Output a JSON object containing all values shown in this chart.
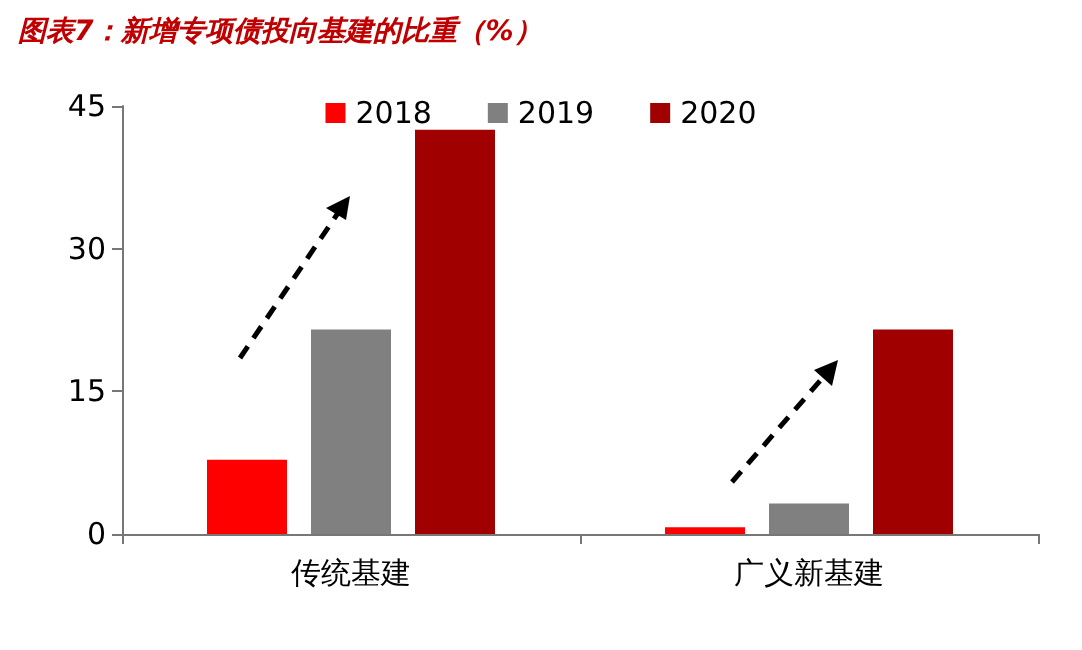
{
  "chart_data": {
    "type": "bar",
    "title": "图表7：新增专项债投向基建的比重（%）",
    "categories": [
      "传统基建",
      "广义新基建"
    ],
    "series": [
      {
        "name": "2018",
        "color": "#ff0000",
        "values": [
          7.8,
          0.7
        ]
      },
      {
        "name": "2019",
        "color": "#808080",
        "values": [
          21.5,
          3.2
        ]
      },
      {
        "name": "2020",
        "color": "#a00000",
        "values": [
          42.5,
          21.5
        ]
      }
    ],
    "ylim": [
      0,
      45
    ],
    "yticks": [
      0,
      15,
      30,
      45
    ],
    "grid": false,
    "legend": "top"
  }
}
